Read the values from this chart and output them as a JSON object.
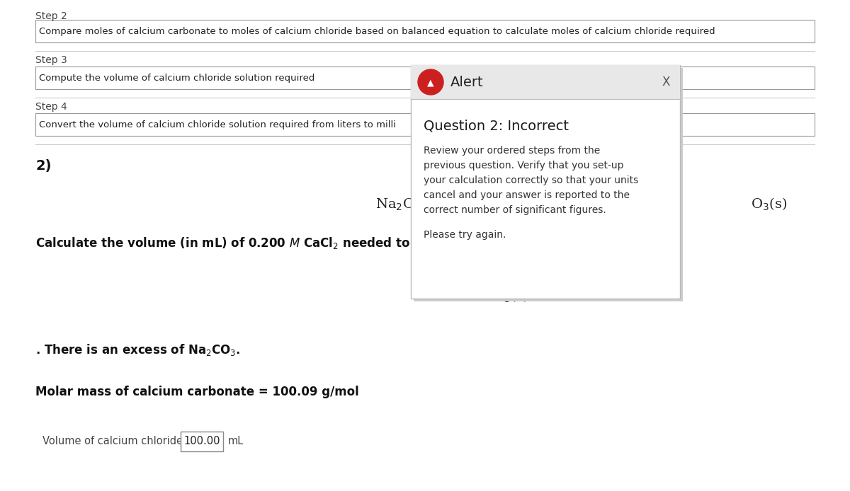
{
  "bg_color": "#ffffff",
  "step2_label": "Step 2",
  "step2_text": "Compare moles of calcium carbonate to moles of calcium chloride based on balanced equation to calculate moles of calcium chloride required",
  "step3_label": "Step 3",
  "step3_text": "Compute the volume of calcium chloride solution required",
  "step4_label": "Step 4",
  "step4_text": "Convert the volume of calcium chloride solution required from liters to milli",
  "q2_label": "2)",
  "molar_mass_text": "Molar mass of calcium carbonate = 100.09 g/mol",
  "volume_label": "Volume of calcium chloride = ",
  "volume_value": "100.00",
  "alert_title": "Alert",
  "alert_q_title": "Question 2: Incorrect",
  "alert_body_line1": "Review your ordered steps from the",
  "alert_body_line2": "previous question. Verify that you set-up",
  "alert_body_line3": "your calculation correctly so that your units",
  "alert_body_line4": "cancel and your answer is reported to the",
  "alert_body_line5": "correct number of significant figures.",
  "alert_footer": "Please try again.",
  "step_label_color": "#444444",
  "step_text_color": "#222222",
  "step_box_edge": "#999999",
  "sep_line_color": "#cccccc",
  "modal_bg": "#f5f5f5",
  "modal_header_bg": "#e8e8e8",
  "modal_border": "#bbbbbb",
  "modal_icon_color": "#cc2020",
  "modal_body_color": "#333333",
  "modal_title_color": "#1a1a1a",
  "text_black": "#111111",
  "text_dark": "#222222",
  "text_mid": "#444444"
}
